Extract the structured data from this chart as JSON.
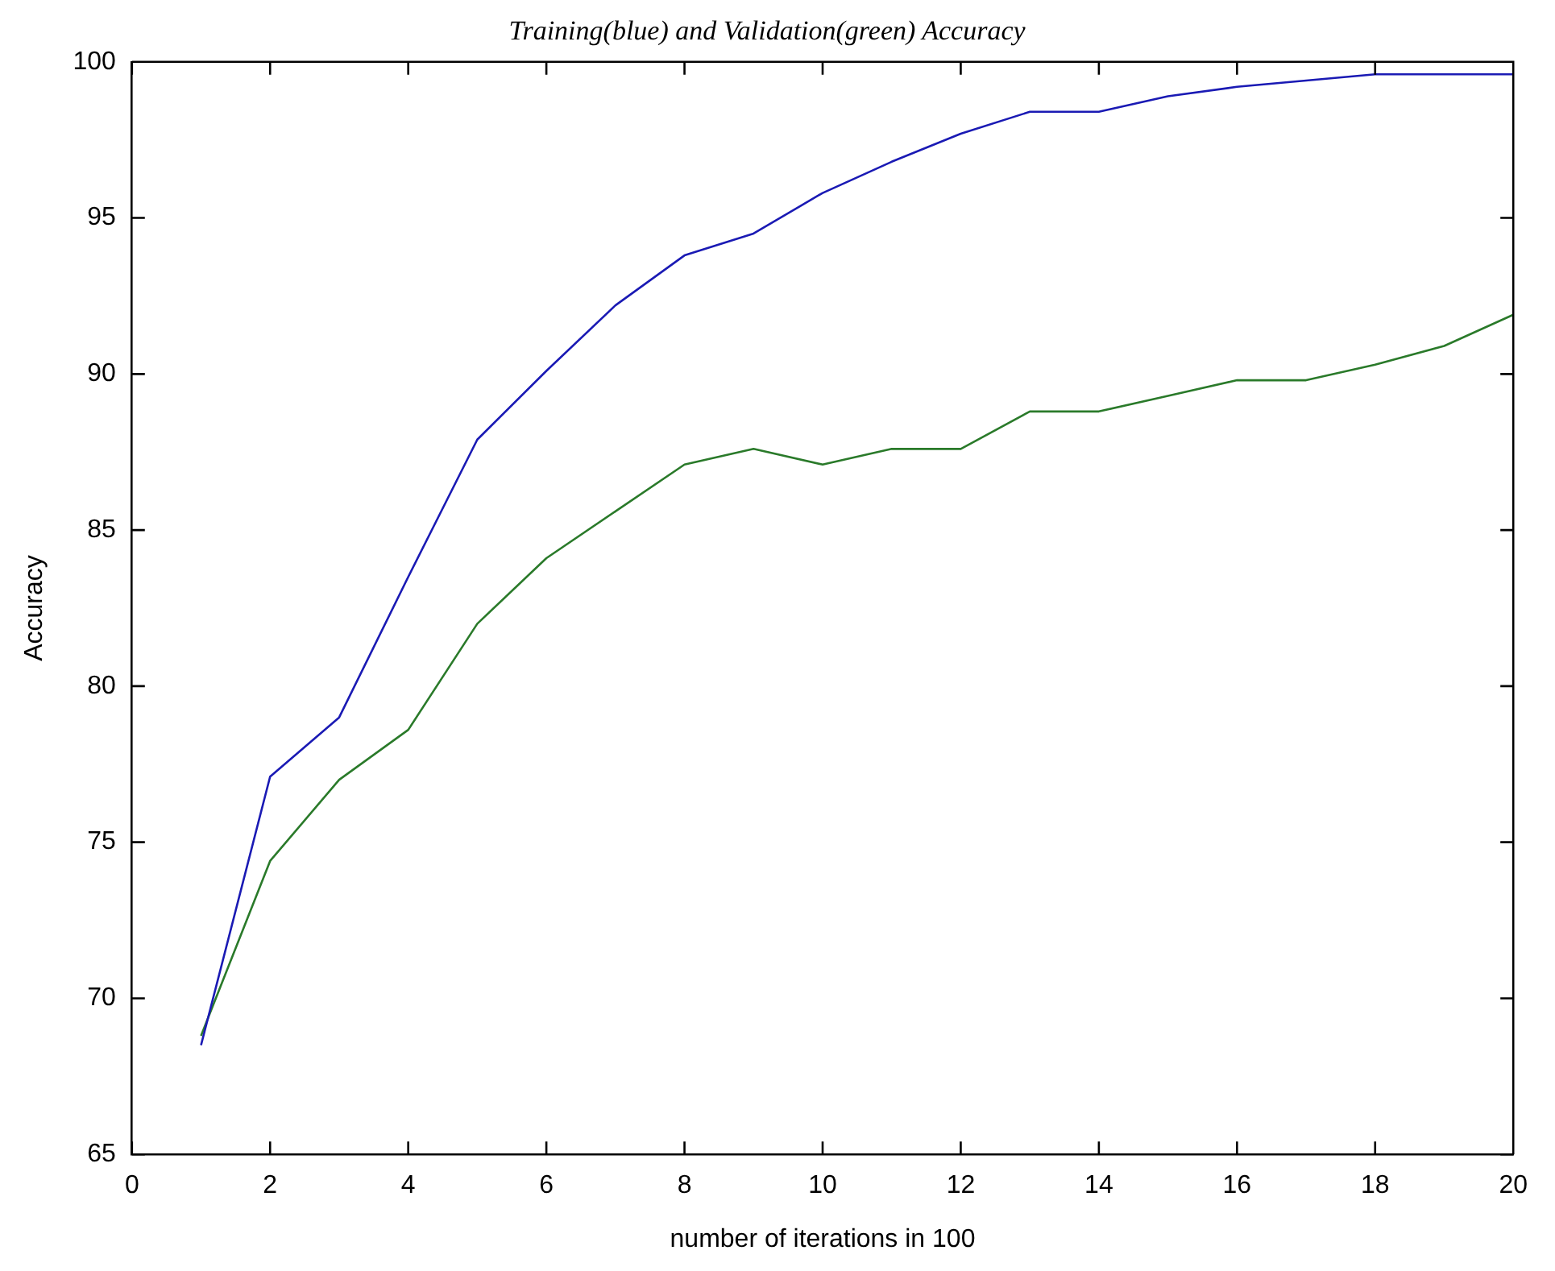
{
  "chart_data": {
    "type": "line",
    "title": "Training(blue) and Validation(green) Accuracy",
    "xlabel": "number of iterations in 100",
    "ylabel": "Accuracy",
    "x": [
      1,
      2,
      3,
      4,
      5,
      6,
      7,
      8,
      9,
      10,
      11,
      12,
      13,
      14,
      15,
      16,
      17,
      18,
      19,
      20
    ],
    "series": [
      {
        "color": "#1a1ab4",
        "values": [
          68.5,
          77.1,
          79,
          83.5,
          87.9,
          90.1,
          92.2,
          93.8,
          94.5,
          95.8,
          96.8,
          97.7,
          98.4,
          98.4,
          98.9,
          99.2,
          99.4,
          99.6,
          99.6,
          99.6
        ]
      },
      {
        "color": "#2a7a2a",
        "values": [
          68.8,
          74.4,
          77,
          78.6,
          82,
          84.1,
          85.6,
          87.1,
          87.6,
          87.1,
          87.6,
          87.6,
          88.8,
          88.8,
          89.3,
          89.8,
          89.8,
          90.3,
          90.9,
          91.9
        ]
      }
    ],
    "xlim": [
      0,
      20
    ],
    "xticks": [
      0,
      2,
      4,
      6,
      8,
      10,
      12,
      14,
      16,
      18,
      20
    ],
    "ylim": [
      65,
      100
    ],
    "yticks": [
      65,
      70,
      75,
      80,
      85,
      90,
      95,
      100
    ],
    "grid": false,
    "legend": false,
    "marker": "none",
    "line_style": "solid"
  }
}
